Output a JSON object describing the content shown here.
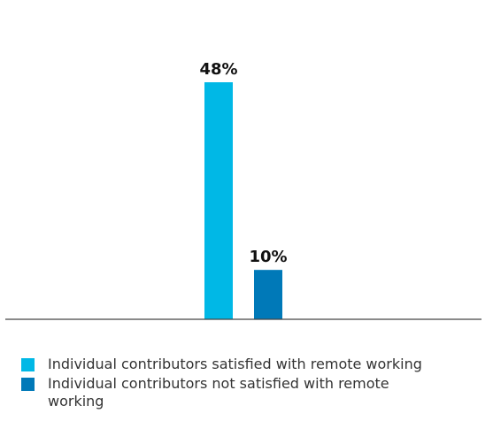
{
  "chart_data": {
    "type": "bar",
    "categories": [
      "Individual contributors satisfied with remote working",
      "Individual contributors not satisfied with remote working"
    ],
    "values": [
      48,
      10
    ],
    "value_labels": [
      "48%",
      "10%"
    ],
    "title": "",
    "xlabel": "",
    "ylabel": "",
    "ylim": [
      0,
      60
    ],
    "grid": false,
    "legend_position": "bottom-left",
    "colors": [
      "#00B8E6",
      "#0079B8"
    ]
  },
  "legend": {
    "items": [
      {
        "label": "Individual contributors satisfied with remote working",
        "color": "#00B8E6"
      },
      {
        "label": "Individual contributors not satisfied with remote working",
        "color": "#0079B8"
      }
    ]
  }
}
